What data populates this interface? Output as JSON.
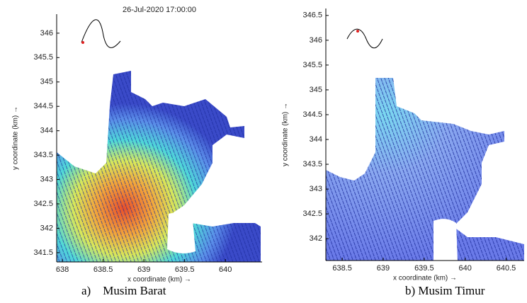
{
  "chart_data": [
    {
      "type": "quiver",
      "title": "26-Jul-2020 17:00:00",
      "x_label": "x coordinate (km) →",
      "y_label": "y coordinate (km) →",
      "caption": "a)    Musim Barat",
      "xlim": [
        637.93,
        640.45
      ],
      "ylim": [
        341.31,
        346.39
      ],
      "xticks": [
        638,
        638.5,
        639,
        639.5,
        640
      ],
      "yticks": [
        341.5,
        342,
        342.5,
        343,
        343.5,
        344,
        344.5,
        345,
        345.5,
        346
      ]
    },
    {
      "type": "quiver",
      "x_label": "x coordinate (km) →",
      "y_label": "y coordinate (km) →",
      "caption": "b) Musim Timur",
      "xlim": [
        638.3,
        640.72
      ],
      "ylim": [
        341.56,
        346.64
      ],
      "xticks": [
        638.5,
        639,
        639.5,
        640,
        640.5
      ],
      "yticks": [
        342,
        342.5,
        343,
        343.5,
        344,
        344.5,
        345,
        345.5,
        346,
        346.5
      ]
    }
  ]
}
